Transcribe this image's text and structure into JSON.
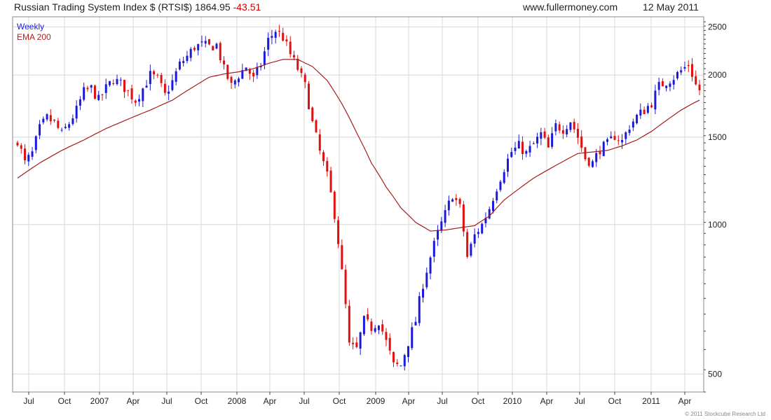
{
  "header": {
    "title": "Russian Trading System Index $ (RTSI$)",
    "last": "1864.95",
    "change": "-43.51",
    "site": "www.fullermoney.com",
    "date": "12 May 2011"
  },
  "legend": {
    "weekly": "Weekly",
    "ema": "EMA 200"
  },
  "copyright": "© 2011 Stockcube Research Ltd",
  "colors": {
    "up": "#1a1adb",
    "down": "#e01010",
    "ema": "#a81c1c",
    "grid": "#d8d8d8",
    "frame": "#888888"
  },
  "chart_data": {
    "type": "candlestick",
    "frequency": "weekly",
    "y_scale": "log",
    "ylim": [
      460,
      2620
    ],
    "grid": true,
    "y_ticks": [
      500,
      1000,
      1500,
      2000,
      2500
    ],
    "y_tick_labels": [
      "500",
      "1000",
      "1500",
      "2000",
      "2500"
    ],
    "x_tick_labels": [
      "Jul",
      "Oct",
      "2007",
      "Apr",
      "Jul",
      "Oct",
      "2008",
      "Apr",
      "Jul",
      "Oct",
      "2009",
      "Apr",
      "Jul",
      "Oct",
      "2010",
      "Apr",
      "Jul",
      "Oct",
      "2011",
      "Apr"
    ],
    "close_anchors": [
      [
        0,
        1480
      ],
      [
        2,
        1330
      ],
      [
        4,
        1390
      ],
      [
        6,
        1560
      ],
      [
        8,
        1640
      ],
      [
        10,
        1600
      ],
      [
        12,
        1520
      ],
      [
        14,
        1600
      ],
      [
        16,
        1700
      ],
      [
        18,
        1850
      ],
      [
        20,
        1880
      ],
      [
        22,
        1780
      ],
      [
        24,
        1880
      ],
      [
        26,
        1960
      ],
      [
        28,
        1920
      ],
      [
        30,
        1850
      ],
      [
        32,
        1780
      ],
      [
        34,
        1880
      ],
      [
        36,
        2000
      ],
      [
        38,
        1960
      ],
      [
        40,
        1820
      ],
      [
        42,
        1940
      ],
      [
        44,
        2100
      ],
      [
        46,
        2180
      ],
      [
        48,
        2280
      ],
      [
        50,
        2300
      ],
      [
        52,
        2280
      ],
      [
        54,
        2300
      ],
      [
        56,
        2050
      ],
      [
        58,
        1900
      ],
      [
        60,
        2000
      ],
      [
        62,
        2080
      ],
      [
        64,
        1960
      ],
      [
        66,
        2100
      ],
      [
        68,
        2350
      ],
      [
        70,
        2460
      ],
      [
        72,
        2380
      ],
      [
        74,
        2200
      ],
      [
        76,
        2060
      ],
      [
        78,
        1900
      ],
      [
        80,
        1600
      ],
      [
        82,
        1400
      ],
      [
        84,
        1250
      ],
      [
        86,
        1050
      ],
      [
        88,
        800
      ],
      [
        90,
        570
      ],
      [
        92,
        560
      ],
      [
        94,
        640
      ],
      [
        96,
        620
      ],
      [
        98,
        640
      ],
      [
        100,
        580
      ],
      [
        102,
        520
      ],
      [
        104,
        520
      ],
      [
        106,
        580
      ],
      [
        108,
        640
      ],
      [
        110,
        760
      ],
      [
        112,
        860
      ],
      [
        114,
        960
      ],
      [
        116,
        1050
      ],
      [
        118,
        1150
      ],
      [
        120,
        1080
      ],
      [
        122,
        860
      ],
      [
        124,
        950
      ],
      [
        126,
        1000
      ],
      [
        128,
        1080
      ],
      [
        130,
        1190
      ],
      [
        132,
        1300
      ],
      [
        134,
        1400
      ],
      [
        136,
        1440
      ],
      [
        138,
        1390
      ],
      [
        140,
        1450
      ],
      [
        142,
        1520
      ],
      [
        144,
        1420
      ],
      [
        146,
        1580
      ],
      [
        148,
        1560
      ],
      [
        150,
        1620
      ],
      [
        152,
        1500
      ],
      [
        154,
        1360
      ],
      [
        156,
        1330
      ],
      [
        158,
        1420
      ],
      [
        160,
        1450
      ],
      [
        162,
        1510
      ],
      [
        164,
        1470
      ],
      [
        166,
        1580
      ],
      [
        168,
        1650
      ],
      [
        170,
        1700
      ],
      [
        172,
        1760
      ],
      [
        174,
        1900
      ],
      [
        176,
        1940
      ],
      [
        178,
        1980
      ],
      [
        180,
        2040
      ],
      [
        182,
        2100
      ],
      [
        183,
        2010
      ],
      [
        184,
        1909
      ],
      [
        185,
        1865
      ]
    ],
    "ema_anchors": [
      [
        0,
        1240
      ],
      [
        6,
        1330
      ],
      [
        12,
        1410
      ],
      [
        18,
        1480
      ],
      [
        24,
        1560
      ],
      [
        30,
        1630
      ],
      [
        36,
        1700
      ],
      [
        42,
        1780
      ],
      [
        48,
        1900
      ],
      [
        52,
        1980
      ],
      [
        56,
        2010
      ],
      [
        60,
        2030
      ],
      [
        64,
        2060
      ],
      [
        68,
        2110
      ],
      [
        72,
        2150
      ],
      [
        76,
        2150
      ],
      [
        80,
        2080
      ],
      [
        84,
        1950
      ],
      [
        88,
        1750
      ],
      [
        92,
        1530
      ],
      [
        96,
        1330
      ],
      [
        100,
        1190
      ],
      [
        104,
        1080
      ],
      [
        108,
        1010
      ],
      [
        112,
        970
      ],
      [
        116,
        975
      ],
      [
        120,
        985
      ],
      [
        124,
        995
      ],
      [
        128,
        1040
      ],
      [
        132,
        1120
      ],
      [
        136,
        1180
      ],
      [
        140,
        1240
      ],
      [
        144,
        1290
      ],
      [
        148,
        1340
      ],
      [
        152,
        1390
      ],
      [
        156,
        1400
      ],
      [
        160,
        1410
      ],
      [
        164,
        1440
      ],
      [
        168,
        1480
      ],
      [
        172,
        1540
      ],
      [
        176,
        1620
      ],
      [
        180,
        1700
      ],
      [
        183,
        1750
      ],
      [
        185,
        1780
      ]
    ]
  }
}
